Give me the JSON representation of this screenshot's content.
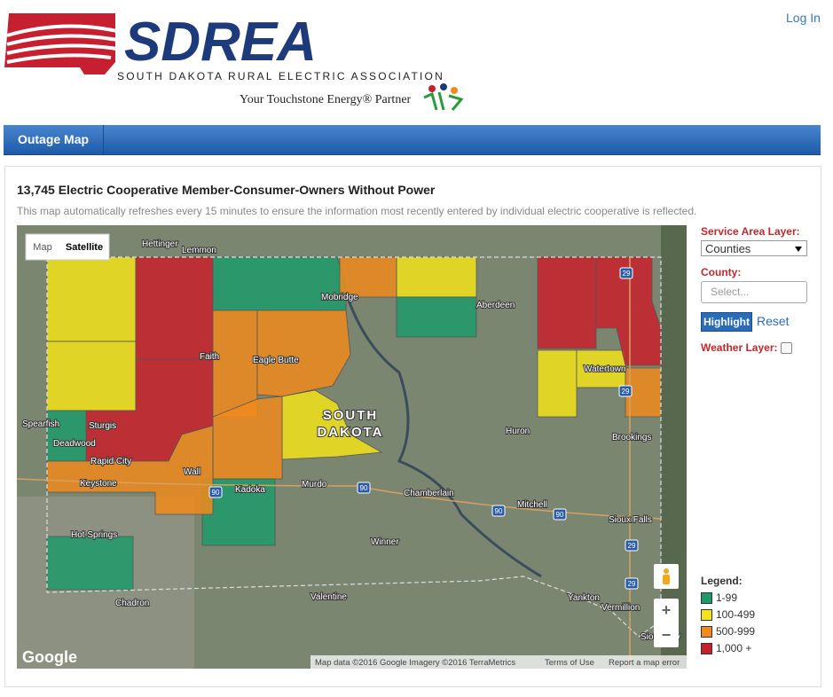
{
  "header": {
    "logo": "SDREA",
    "tagline": "SOUTH DAKOTA RURAL ELECTRIC ASSOCIATION",
    "partner": "Your Touchstone Energy® Partner",
    "login": "Log In"
  },
  "nav": {
    "tabs": [
      "Outage Map"
    ]
  },
  "panel": {
    "title": "13,745 Electric Cooperative Member-Consumer-Owners Without Power",
    "description": "This map automatically refreshes every 15 minutes to ensure the information most recently entered by individual electric cooperative is reflected."
  },
  "map": {
    "type_buttons": [
      "Map",
      "Satellite"
    ],
    "state_label": [
      "SOUTH",
      "DAKOTA"
    ],
    "places": [
      "Hettinger",
      "Lemmon",
      "Mobridge",
      "Aberdeen",
      "Faith",
      "Eagle Butte",
      "Watertown",
      "Spearfish",
      "Sturgis",
      "Deadwood",
      "Rapid City",
      "Wall",
      "Keystone",
      "Kadoka",
      "Murdo",
      "Chamberlain",
      "Mitchell",
      "Huron",
      "Brookings",
      "Sioux Falls",
      "Hot Springs",
      "Winner",
      "Chadron",
      "Valentine",
      "Yankton",
      "Vermillion",
      "Sioux City"
    ],
    "highways": [
      "29",
      "29",
      "90",
      "90",
      "90",
      "90",
      "29",
      "29"
    ],
    "google": "Google",
    "attribution": "Map data ©2016 Google Imagery ©2016 TerraMetrics",
    "terms": "Terms of Use",
    "report": "Report a map error",
    "zoom_in": "+",
    "zoom_out": "−"
  },
  "controls": {
    "service_area_label": "Service Area Layer:",
    "service_area_value": "Counties",
    "county_label": "County:",
    "county_placeholder": "Select...",
    "highlight": "Highlight",
    "reset": "Reset",
    "weather_label": "Weather Layer:"
  },
  "legend": {
    "title": "Legend:",
    "items": [
      {
        "label": "1-99",
        "color": "#1e9a6a"
      },
      {
        "label": "100-499",
        "color": "#f2e31a"
      },
      {
        "label": "500-999",
        "color": "#f08a1c"
      },
      {
        "label": "1,000 +",
        "color": "#c8202a"
      }
    ]
  }
}
